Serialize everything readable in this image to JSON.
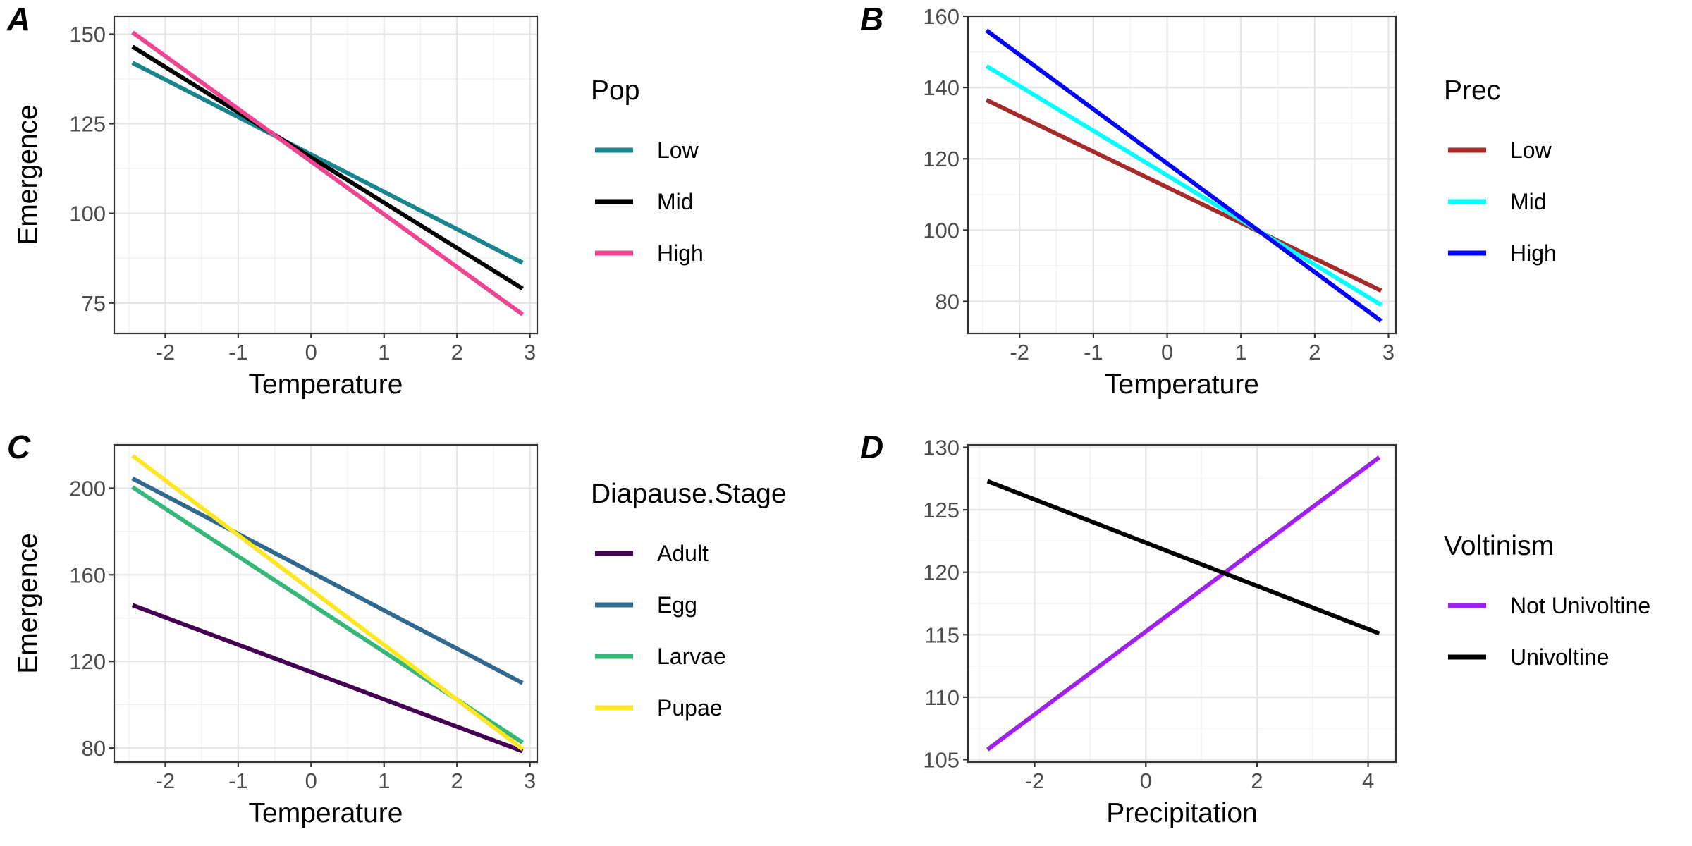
{
  "chart_data": [
    {
      "panel_label": "A",
      "type": "line",
      "xlabel": "Temperature",
      "ylabel": "Emergence",
      "xlim": [
        -2.7,
        3.1
      ],
      "ylim": [
        66.5,
        155
      ],
      "xticks": [
        -2,
        -1,
        0,
        1,
        2,
        3
      ],
      "yticks": [
        75,
        100,
        125,
        150
      ],
      "grid": true,
      "legend": {
        "title": "Pop",
        "position": "right"
      },
      "series": [
        {
          "name": "Low",
          "color": "#1A858F",
          "x": [
            -2.45,
            2.9
          ],
          "y": [
            142.0,
            86.2
          ]
        },
        {
          "name": "Mid",
          "color": "#000000",
          "x": [
            -2.45,
            2.9
          ],
          "y": [
            146.5,
            79.0
          ]
        },
        {
          "name": "High",
          "color": "#EE4591",
          "x": [
            -2.45,
            2.9
          ],
          "y": [
            150.5,
            71.8
          ]
        }
      ]
    },
    {
      "panel_label": "B",
      "type": "line",
      "xlabel": "Temperature",
      "ylabel": "Emergence",
      "xlim": [
        -2.7,
        3.1
      ],
      "ylim": [
        71,
        160
      ],
      "xticks": [
        -2,
        -1,
        0,
        1,
        2,
        3
      ],
      "yticks": [
        80,
        100,
        120,
        140,
        160
      ],
      "grid": true,
      "legend": {
        "title": "Prec",
        "position": "right"
      },
      "series": [
        {
          "name": "Low",
          "color": "#A52A2A",
          "x": [
            -2.45,
            2.9
          ],
          "y": [
            136.5,
            83.0
          ]
        },
        {
          "name": "Mid",
          "color": "#00FFFF",
          "x": [
            -2.45,
            2.9
          ],
          "y": [
            146.0,
            79.0
          ]
        },
        {
          "name": "High",
          "color": "#0000FF",
          "x": [
            -2.45,
            2.9
          ],
          "y": [
            156.0,
            74.5
          ]
        }
      ]
    },
    {
      "panel_label": "C",
      "type": "line",
      "xlabel": "Temperature",
      "ylabel": "Emergence",
      "xlim": [
        -2.7,
        3.1
      ],
      "ylim": [
        73.5,
        220
      ],
      "xticks": [
        -2,
        -1,
        0,
        1,
        2,
        3
      ],
      "yticks": [
        80,
        120,
        160,
        200
      ],
      "grid": true,
      "legend": {
        "title": "Diapause.Stage",
        "position": "right"
      },
      "series": [
        {
          "name": "Adult",
          "color": "#440154",
          "x": [
            -2.45,
            2.9
          ],
          "y": [
            146.0,
            78.5
          ]
        },
        {
          "name": "Egg",
          "color": "#31688E",
          "x": [
            -2.45,
            2.9
          ],
          "y": [
            204.5,
            110.0
          ]
        },
        {
          "name": "Larvae",
          "color": "#35B779",
          "x": [
            -2.45,
            2.9
          ],
          "y": [
            200.5,
            82.5
          ]
        },
        {
          "name": "Pupae",
          "color": "#FDE725",
          "x": [
            -2.45,
            2.9
          ],
          "y": [
            215.0,
            79.5
          ]
        }
      ]
    },
    {
      "panel_label": "D",
      "type": "line",
      "xlabel": "Precipitation",
      "ylabel": "Emergence",
      "xlim": [
        -3.2,
        4.5
      ],
      "ylim": [
        104.8,
        130.2
      ],
      "xticks": [
        -2,
        0,
        2,
        4
      ],
      "yticks": [
        105,
        110,
        115,
        120,
        125,
        130
      ],
      "grid": true,
      "legend": {
        "title": "Voltinism",
        "position": "right"
      },
      "series": [
        {
          "name": "Not Univoltine",
          "color": "#A020F0",
          "x": [
            -2.85,
            4.2
          ],
          "y": [
            105.8,
            129.2
          ]
        },
        {
          "name": "Univoltine",
          "color": "#000000",
          "x": [
            -2.85,
            4.2
          ],
          "y": [
            127.3,
            115.1
          ]
        }
      ]
    }
  ]
}
